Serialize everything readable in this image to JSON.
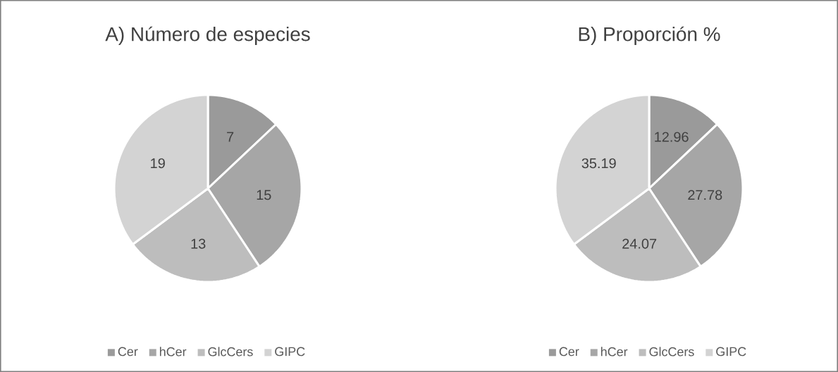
{
  "chart_data": [
    {
      "type": "pie",
      "title": "A) Número de especies",
      "categories": [
        "Cer",
        "hCer",
        "GlcCers",
        "GIPC"
      ],
      "values": [
        7,
        15,
        13,
        19
      ],
      "colors": [
        "#9a9a9a",
        "#a6a6a6",
        "#bdbdbd",
        "#d3d3d3"
      ],
      "data_labels": true,
      "legend": "bottom"
    },
    {
      "type": "pie",
      "title": "B) Proporción %",
      "categories": [
        "Cer",
        "hCer",
        "GlcCers",
        "GIPC"
      ],
      "values": [
        12.96,
        27.78,
        24.07,
        35.19
      ],
      "colors": [
        "#9a9a9a",
        "#a6a6a6",
        "#bdbdbd",
        "#d3d3d3"
      ],
      "data_labels": true,
      "legend": "bottom"
    }
  ]
}
